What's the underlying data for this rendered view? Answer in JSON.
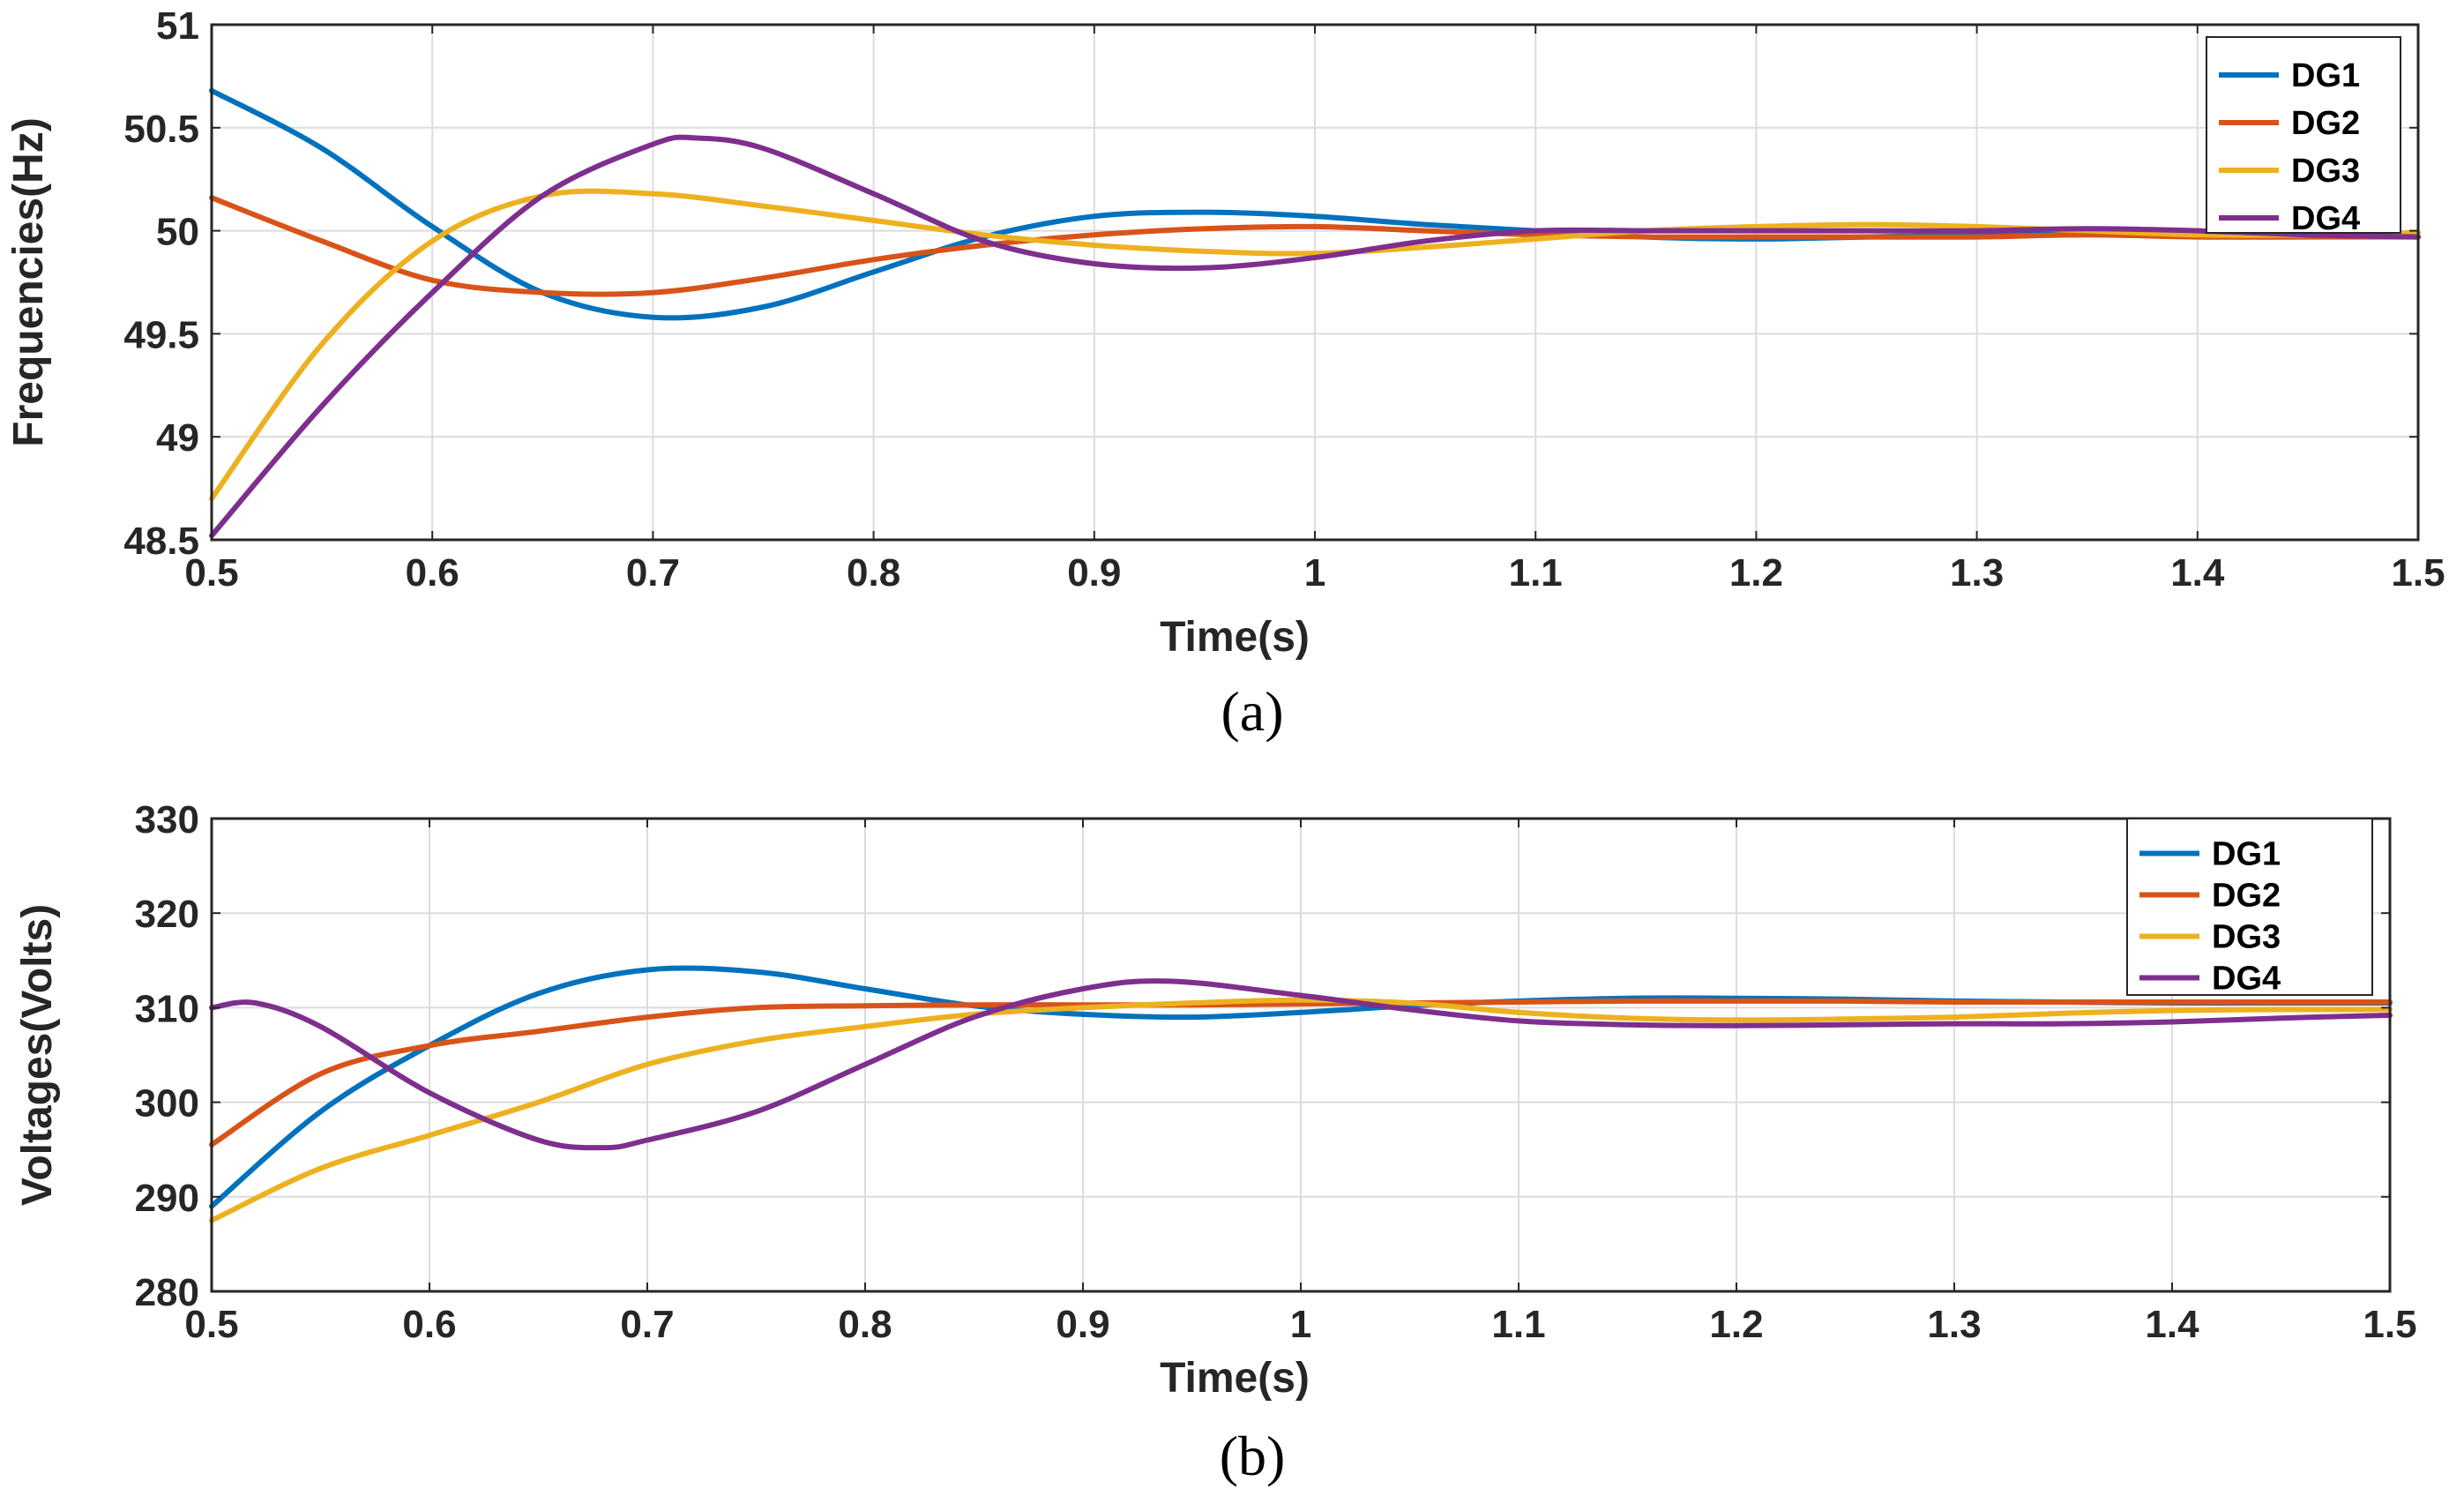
{
  "chart_data": [
    {
      "type": "line",
      "panel_caption": "(a)",
      "title": "",
      "xlabel": "Time(s)",
      "ylabel": "Frequencies(Hz)",
      "xlim": [
        0.5,
        1.5
      ],
      "ylim": [
        48.5,
        51
      ],
      "xticks": [
        "0.5",
        "0.6",
        "0.7",
        "0.8",
        "0.9",
        "1",
        "1.1",
        "1.2",
        "1.3",
        "1.4",
        "1.5"
      ],
      "yticks": [
        "48.5",
        "49",
        "49.5",
        "50",
        "50.5",
        "51"
      ],
      "grid": true,
      "legend_position": "top-right",
      "series": [
        {
          "name": "DG1",
          "color": "#0072BD",
          "x": [
            0.5,
            0.55,
            0.6,
            0.65,
            0.7,
            0.75,
            0.8,
            0.85,
            0.9,
            0.95,
            1.0,
            1.05,
            1.1,
            1.15,
            1.2,
            1.25,
            1.3,
            1.35,
            1.4,
            1.45,
            1.5
          ],
          "y": [
            50.68,
            50.4,
            50.02,
            49.7,
            49.58,
            49.63,
            49.8,
            49.97,
            50.07,
            50.09,
            50.07,
            50.03,
            50.0,
            49.97,
            49.96,
            49.97,
            49.98,
            49.99,
            49.99,
            49.98,
            49.97
          ]
        },
        {
          "name": "DG2",
          "color": "#D95319",
          "x": [
            0.5,
            0.55,
            0.6,
            0.65,
            0.7,
            0.75,
            0.8,
            0.85,
            0.9,
            0.95,
            1.0,
            1.05,
            1.1,
            1.15,
            1.2,
            1.25,
            1.3,
            1.35,
            1.4,
            1.45,
            1.5
          ],
          "y": [
            50.16,
            49.95,
            49.76,
            49.7,
            49.7,
            49.77,
            49.86,
            49.93,
            49.98,
            50.01,
            50.02,
            50.0,
            49.98,
            49.97,
            49.97,
            49.97,
            49.97,
            49.98,
            49.97,
            49.97,
            49.97
          ]
        },
        {
          "name": "DG3",
          "color": "#EDB120",
          "x": [
            0.5,
            0.55,
            0.6,
            0.65,
            0.7,
            0.75,
            0.8,
            0.85,
            0.9,
            0.95,
            1.0,
            1.05,
            1.1,
            1.15,
            1.2,
            1.25,
            1.3,
            1.35,
            1.4,
            1.45,
            1.5
          ],
          "y": [
            48.7,
            49.45,
            49.95,
            50.17,
            50.18,
            50.12,
            50.05,
            49.98,
            49.93,
            49.9,
            49.89,
            49.92,
            49.96,
            50.0,
            50.02,
            50.03,
            50.02,
            50.0,
            49.98,
            49.98,
            49.99
          ]
        },
        {
          "name": "DG4",
          "color": "#7E2F8E",
          "x": [
            0.5,
            0.55,
            0.6,
            0.65,
            0.7,
            0.72,
            0.75,
            0.8,
            0.85,
            0.9,
            0.95,
            1.0,
            1.05,
            1.1,
            1.15,
            1.2,
            1.25,
            1.3,
            1.35,
            1.4,
            1.45,
            1.5
          ],
          "y": [
            48.52,
            49.15,
            49.7,
            50.17,
            50.42,
            50.45,
            50.4,
            50.18,
            49.95,
            49.84,
            49.82,
            49.87,
            49.95,
            50.0,
            50.0,
            50.0,
            50.0,
            50.0,
            50.01,
            50.0,
            49.98,
            49.97
          ]
        }
      ]
    },
    {
      "type": "line",
      "panel_caption": "(b)",
      "title": "",
      "xlabel": "Time(s)",
      "ylabel": "Voltages(Volts)",
      "xlim": [
        0.5,
        1.5
      ],
      "ylim": [
        280,
        330
      ],
      "xticks": [
        "0.5",
        "0.6",
        "0.7",
        "0.8",
        "0.9",
        "1",
        "1.1",
        "1.2",
        "1.3",
        "1.4",
        "1.5"
      ],
      "yticks": [
        "280",
        "290",
        "300",
        "310",
        "320",
        "330"
      ],
      "grid": true,
      "legend_position": "top-right",
      "series": [
        {
          "name": "DG1",
          "color": "#0072BD",
          "x": [
            0.5,
            0.55,
            0.6,
            0.65,
            0.7,
            0.75,
            0.8,
            0.85,
            0.9,
            0.95,
            1.0,
            1.05,
            1.1,
            1.15,
            1.2,
            1.25,
            1.3,
            1.35,
            1.4,
            1.45,
            1.5
          ],
          "y": [
            289,
            299,
            306,
            311.5,
            314,
            313.8,
            312,
            310.2,
            309.3,
            309,
            309.5,
            310.2,
            310.7,
            311,
            311,
            310.9,
            310.7,
            310.6,
            310.5,
            310.5,
            310.5
          ]
        },
        {
          "name": "DG2",
          "color": "#D95319",
          "x": [
            0.5,
            0.55,
            0.6,
            0.65,
            0.7,
            0.75,
            0.8,
            0.85,
            0.9,
            0.95,
            1.0,
            1.05,
            1.1,
            1.15,
            1.2,
            1.25,
            1.3,
            1.35,
            1.4,
            1.45,
            1.5
          ],
          "y": [
            295.5,
            303,
            306,
            307.5,
            309,
            310,
            310.2,
            310.3,
            310.3,
            310.3,
            310.4,
            310.5,
            310.6,
            310.7,
            310.7,
            310.7,
            310.6,
            310.6,
            310.6,
            310.6,
            310.6
          ]
        },
        {
          "name": "DG3",
          "color": "#EDB120",
          "x": [
            0.5,
            0.55,
            0.6,
            0.65,
            0.7,
            0.75,
            0.8,
            0.85,
            0.9,
            0.95,
            1.0,
            1.05,
            1.1,
            1.15,
            1.2,
            1.25,
            1.3,
            1.35,
            1.4,
            1.45,
            1.5
          ],
          "y": [
            287.5,
            293,
            296.5,
            300,
            304,
            306.5,
            308,
            309.3,
            310,
            310.5,
            310.8,
            310.5,
            309.5,
            308.9,
            308.7,
            308.8,
            309,
            309.4,
            309.7,
            309.8,
            309.8
          ]
        },
        {
          "name": "DG4",
          "color": "#7E2F8E",
          "x": [
            0.5,
            0.52,
            0.55,
            0.6,
            0.65,
            0.68,
            0.7,
            0.75,
            0.8,
            0.85,
            0.9,
            0.94,
            1.0,
            1.05,
            1.1,
            1.15,
            1.2,
            1.25,
            1.3,
            1.35,
            1.4,
            1.45,
            1.5
          ],
          "y": [
            310,
            310.5,
            308,
            301,
            296,
            295.2,
            296,
            299,
            304,
            309,
            312,
            312.8,
            311.3,
            309.8,
            308.6,
            308.2,
            308.1,
            308.2,
            308.3,
            308.3,
            308.5,
            308.9,
            309.2
          ]
        }
      ]
    }
  ]
}
